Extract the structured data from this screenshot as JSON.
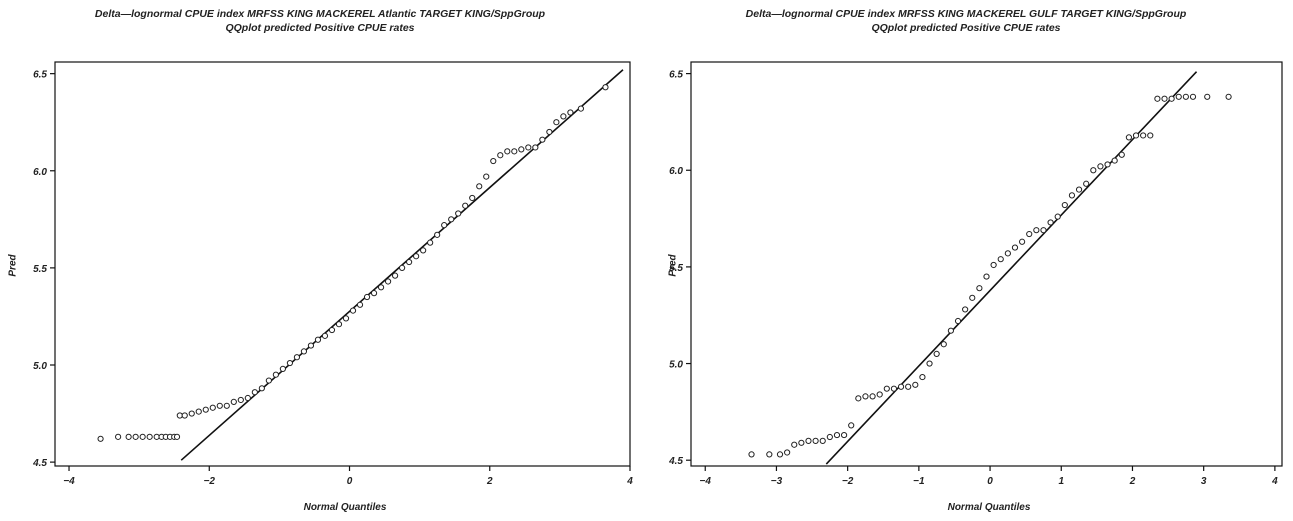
{
  "chart_data": [
    {
      "type": "scatter",
      "title": "Delta—lognormal CPUE index MRFSS KING MACKEREL Atlantic TARGET KING/SppGroup",
      "subtitle": "QQplot predicted Positive CPUE rates",
      "xlabel": "Normal Quantiles",
      "ylabel": "Pred",
      "xlim": [
        -4.2,
        4.0
      ],
      "ylim": [
        4.48,
        6.56
      ],
      "x_ticks": [
        -4,
        -2,
        0,
        2,
        4
      ],
      "y_ticks": [
        4.5,
        5.0,
        5.5,
        6.0,
        6.5
      ],
      "y_tick_labels": [
        "4.5",
        "5.0",
        "5.5",
        "6.0",
        "6.5"
      ],
      "grid": false,
      "reference_line": [
        [
          -2.4,
          4.51
        ],
        [
          3.9,
          6.52
        ]
      ],
      "series": [
        {
          "x": [
            -3.55,
            -3.3,
            -3.15,
            -3.05,
            -2.95,
            -2.85,
            -2.75,
            -2.68,
            -2.62,
            -2.56,
            -2.5,
            -2.46,
            -2.42,
            -2.35,
            -2.25,
            -2.15,
            -2.05,
            -1.95,
            -1.85,
            -1.75,
            -1.65,
            -1.55,
            -1.45,
            -1.35,
            -1.25,
            -1.15,
            -1.05,
            -0.95,
            -0.85,
            -0.75,
            -0.65,
            -0.55,
            -0.45,
            -0.35,
            -0.25,
            -0.15,
            -0.05,
            0.05,
            0.15,
            0.25,
            0.35,
            0.45,
            0.55,
            0.65,
            0.75,
            0.85,
            0.95,
            1.05,
            1.15,
            1.25,
            1.35,
            1.45,
            1.55,
            1.65,
            1.75,
            1.85,
            1.95,
            2.05,
            2.15,
            2.25,
            2.35,
            2.45,
            2.55,
            2.65,
            2.75,
            2.85,
            2.95,
            3.05,
            3.15,
            3.3,
            3.65
          ],
          "y": [
            4.62,
            4.63,
            4.63,
            4.63,
            4.63,
            4.63,
            4.63,
            4.63,
            4.63,
            4.63,
            4.63,
            4.63,
            4.74,
            4.74,
            4.75,
            4.76,
            4.77,
            4.78,
            4.79,
            4.79,
            4.81,
            4.82,
            4.83,
            4.86,
            4.88,
            4.92,
            4.95,
            4.98,
            5.01,
            5.04,
            5.07,
            5.1,
            5.13,
            5.15,
            5.18,
            5.21,
            5.24,
            5.28,
            5.31,
            5.35,
            5.37,
            5.4,
            5.43,
            5.46,
            5.5,
            5.53,
            5.56,
            5.59,
            5.63,
            5.67,
            5.72,
            5.75,
            5.78,
            5.82,
            5.86,
            5.92,
            5.97,
            6.05,
            6.08,
            6.1,
            6.1,
            6.11,
            6.12,
            6.12,
            6.16,
            6.2,
            6.25,
            6.28,
            6.3,
            6.32,
            6.43
          ]
        }
      ]
    },
    {
      "type": "scatter",
      "title": "Delta—lognormal CPUE index MRFSS KING MACKEREL GULF TARGET KING/SppGroup",
      "subtitle": "QQplot predicted Positive CPUE rates",
      "xlabel": "Normal Quantiles",
      "ylabel": "Pred",
      "xlim": [
        -4.2,
        4.1
      ],
      "ylim": [
        4.47,
        6.56
      ],
      "x_ticks": [
        -4,
        -3,
        -2,
        -1,
        0,
        1,
        2,
        3,
        4
      ],
      "y_ticks": [
        4.5,
        5.0,
        5.5,
        6.0,
        6.5
      ],
      "y_tick_labels": [
        "4.5",
        "5.0",
        "5.5",
        "6.0",
        "6.5"
      ],
      "grid": false,
      "reference_line": [
        [
          -2.3,
          4.48
        ],
        [
          2.9,
          6.51
        ]
      ],
      "series": [
        {
          "x": [
            -3.35,
            -3.1,
            -2.95,
            -2.85,
            -2.75,
            -2.65,
            -2.55,
            -2.45,
            -2.35,
            -2.25,
            -2.15,
            -2.05,
            -1.95,
            -1.85,
            -1.75,
            -1.65,
            -1.55,
            -1.45,
            -1.35,
            -1.25,
            -1.15,
            -1.05,
            -0.95,
            -0.85,
            -0.75,
            -0.65,
            -0.55,
            -0.45,
            -0.35,
            -0.25,
            -0.15,
            -0.05,
            0.05,
            0.15,
            0.25,
            0.35,
            0.45,
            0.55,
            0.65,
            0.75,
            0.85,
            0.95,
            1.05,
            1.15,
            1.25,
            1.35,
            1.45,
            1.55,
            1.65,
            1.75,
            1.85,
            1.95,
            2.05,
            2.15,
            2.25,
            2.35,
            2.45,
            2.55,
            2.65,
            2.75,
            2.85,
            3.05,
            3.35
          ],
          "y": [
            4.53,
            4.53,
            4.53,
            4.54,
            4.58,
            4.59,
            4.6,
            4.6,
            4.6,
            4.62,
            4.63,
            4.63,
            4.68,
            4.82,
            4.83,
            4.83,
            4.84,
            4.87,
            4.87,
            4.88,
            4.88,
            4.89,
            4.93,
            5.0,
            5.05,
            5.1,
            5.17,
            5.22,
            5.28,
            5.34,
            5.39,
            5.45,
            5.51,
            5.54,
            5.57,
            5.6,
            5.63,
            5.67,
            5.69,
            5.69,
            5.73,
            5.76,
            5.82,
            5.87,
            5.9,
            5.93,
            6.0,
            6.02,
            6.03,
            6.05,
            6.08,
            6.17,
            6.18,
            6.18,
            6.18,
            6.37,
            6.37,
            6.37,
            6.38,
            6.38,
            6.38,
            6.38,
            6.38
          ]
        }
      ]
    }
  ]
}
